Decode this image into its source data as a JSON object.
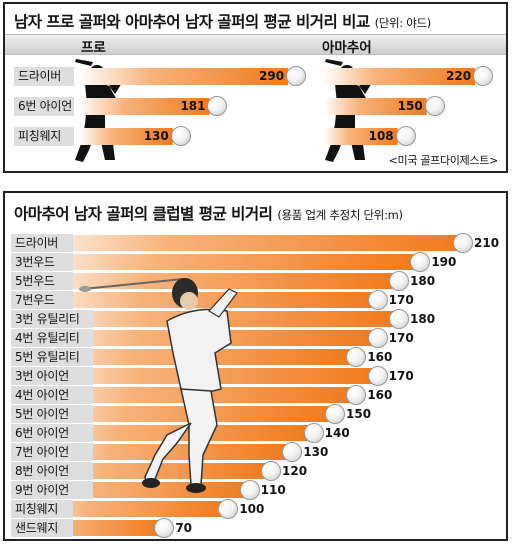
{
  "colors": {
    "bar_orange": "#f07a1c",
    "bar_fade": "#ffffff",
    "label_bg": "#dedede",
    "header_bg": "#d8d8d8"
  },
  "chart_data": [
    {
      "type": "bar",
      "title": "남자 프로 골퍼와 아마추어 남자 골퍼의 평균 비거리 비교",
      "unit_note": "(단위: 야드)",
      "categories": [
        "드라이버",
        "6번 아이언",
        "피칭웨지"
      ],
      "series": [
        {
          "name": "프로",
          "values": [
            290,
            181,
            130
          ]
        },
        {
          "name": "아마추어",
          "values": [
            220,
            150,
            108
          ]
        }
      ],
      "source": "<미국 골프다이제스트>"
    },
    {
      "type": "bar",
      "title": "아마추어 남자 골퍼의 클럽별 평균 비거리",
      "unit_note": "(용품 업계 추정치  단위:m)",
      "categories": [
        "드라이버",
        "3번우드",
        "5번우드",
        "7번우드",
        "3번 유틸리티",
        "4번 유틸리티",
        "5번 유틸리티",
        "3번 아이언",
        "4번 아이언",
        "5번 아이언",
        "6번 아이언",
        "7번 아이언",
        "8번 아이언",
        "9번 아이언",
        "피칭웨지",
        "샌드웨지"
      ],
      "values": [
        210,
        190,
        180,
        170,
        180,
        170,
        160,
        170,
        160,
        150,
        140,
        130,
        120,
        110,
        100,
        70
      ]
    }
  ]
}
